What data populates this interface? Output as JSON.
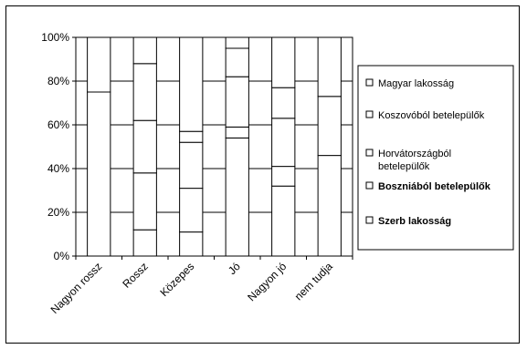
{
  "chart_data": {
    "type": "bar",
    "stacked": true,
    "normalized": true,
    "categories": [
      "Nagyon rossz",
      "Rossz",
      "Közepes",
      "Jó",
      "Nagyon jó",
      "nem tudja"
    ],
    "ylim": [
      0,
      100
    ],
    "y_ticks": [
      "0%",
      "20%",
      "40%",
      "60%",
      "80%",
      "100%"
    ],
    "grid": true,
    "legend_position": "right",
    "series": [
      {
        "name": "Magyar lakosság",
        "bold": false,
        "values": [
          [
            0,
            100
          ],
          [
            0,
            100
          ],
          [
            0,
            100
          ],
          [
            0,
            100
          ],
          [
            0,
            100
          ],
          [
            0,
            100
          ]
        ]
      },
      {
        "name": "Koszovóból betelepülők",
        "bold": false,
        "values": [
          [
            75,
            100
          ],
          [
            0,
            100
          ],
          [
            57,
            100
          ],
          [
            95,
            100
          ],
          [
            0,
            100
          ],
          [
            73,
            100
          ]
        ]
      },
      {
        "name": "Horvátországból betelepülők",
        "bold": false,
        "values": [
          [
            0,
            75
          ],
          [
            88,
            100
          ],
          [
            52,
            57
          ],
          [
            82,
            95
          ],
          [
            77,
            100
          ],
          [
            46,
            73
          ]
        ]
      },
      {
        "name": "Boszniából betelepülők",
        "bold": true,
        "values": [
          [
            0,
            0
          ],
          [
            62,
            88
          ],
          [
            31,
            52
          ],
          [
            59,
            82
          ],
          [
            63,
            77
          ],
          [
            0,
            46
          ]
        ]
      },
      {
        "name": "Szerb lakosság",
        "bold": true,
        "values": [
          [
            0,
            0
          ],
          [
            38,
            62
          ],
          [
            11,
            31
          ],
          [
            54,
            59
          ],
          [
            41,
            63
          ],
          [
            0,
            0
          ]
        ]
      }
    ],
    "bars": [
      {
        "category": "Nagyon rossz",
        "segments": [
          0,
          75,
          100
        ]
      },
      {
        "category": "Rossz",
        "segments": [
          0,
          12,
          38,
          62,
          88,
          100
        ]
      },
      {
        "category": "Közepes",
        "segments": [
          0,
          11,
          31,
          52,
          57,
          100
        ]
      },
      {
        "category": "Jó",
        "segments": [
          0,
          54,
          59,
          82,
          95,
          100
        ]
      },
      {
        "category": "Nagyon jó",
        "segments": [
          0,
          32,
          41,
          63,
          77,
          100
        ]
      },
      {
        "category": "nem tudja",
        "segments": [
          0,
          46,
          73,
          100
        ]
      }
    ],
    "legend": [
      {
        "label": "Magyar lakosság",
        "bold": false
      },
      {
        "label": "Koszovóból betelepülők",
        "bold": false
      },
      {
        "label": "Horvátországból",
        "label2": "betelepülők",
        "bold": false
      },
      {
        "label": "Boszniából betelepülők",
        "bold": true
      },
      {
        "label": "Szerb lakosság",
        "bold": true
      }
    ]
  }
}
